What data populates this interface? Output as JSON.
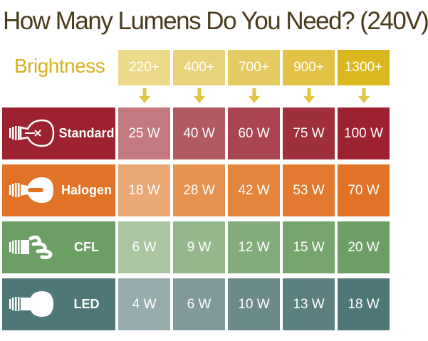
{
  "title": "How Many Lumens Do You Need? (240V)",
  "brightness_label": "Brightness",
  "columns": [
    {
      "label": "220+",
      "color": "#ecd98a"
    },
    {
      "label": "400+",
      "color": "#e9d27a"
    },
    {
      "label": "700+",
      "color": "#e6cb62"
    },
    {
      "label": "900+",
      "color": "#e1c244"
    },
    {
      "label": "1300+",
      "color": "#dab61f"
    }
  ],
  "arrow_color": "#e2c542",
  "rows": [
    {
      "name": "Standard",
      "icon": "incandescent-bulb-icon",
      "label_color": "#9c2230",
      "values": [
        "25 W",
        "40 W",
        "60 W",
        "75 W",
        "100 W"
      ],
      "cell_colors": [
        "#c27a7f",
        "#b25a62",
        "#a84550",
        "#a02f3c",
        "#9c2230"
      ]
    },
    {
      "name": "Halogen",
      "icon": "halogen-bulb-icon",
      "label_color": "#e17326",
      "values": [
        "18 W",
        "28 W",
        "42 W",
        "53 W",
        "70 W"
      ],
      "cell_colors": [
        "#e9a875",
        "#e5934f",
        "#e3853c",
        "#e17a2e",
        "#e17326"
      ]
    },
    {
      "name": "CFL",
      "icon": "cfl-bulb-icon",
      "label_color": "#6c9f64",
      "values": [
        "6 W",
        "9 W",
        "12 W",
        "15 W",
        "20 W"
      ],
      "cell_colors": [
        "#a9c6a1",
        "#94b88c",
        "#82ac79",
        "#75a56d",
        "#6c9f64"
      ]
    },
    {
      "name": "LED",
      "icon": "led-bulb-icon",
      "label_color": "#4e7877",
      "values": [
        "4 W",
        "6 W",
        "10 W",
        "13 W",
        "18 W"
      ],
      "cell_colors": [
        "#97adad",
        "#7f9a99",
        "#6b8a89",
        "#5b807f",
        "#4e7877"
      ]
    }
  ]
}
